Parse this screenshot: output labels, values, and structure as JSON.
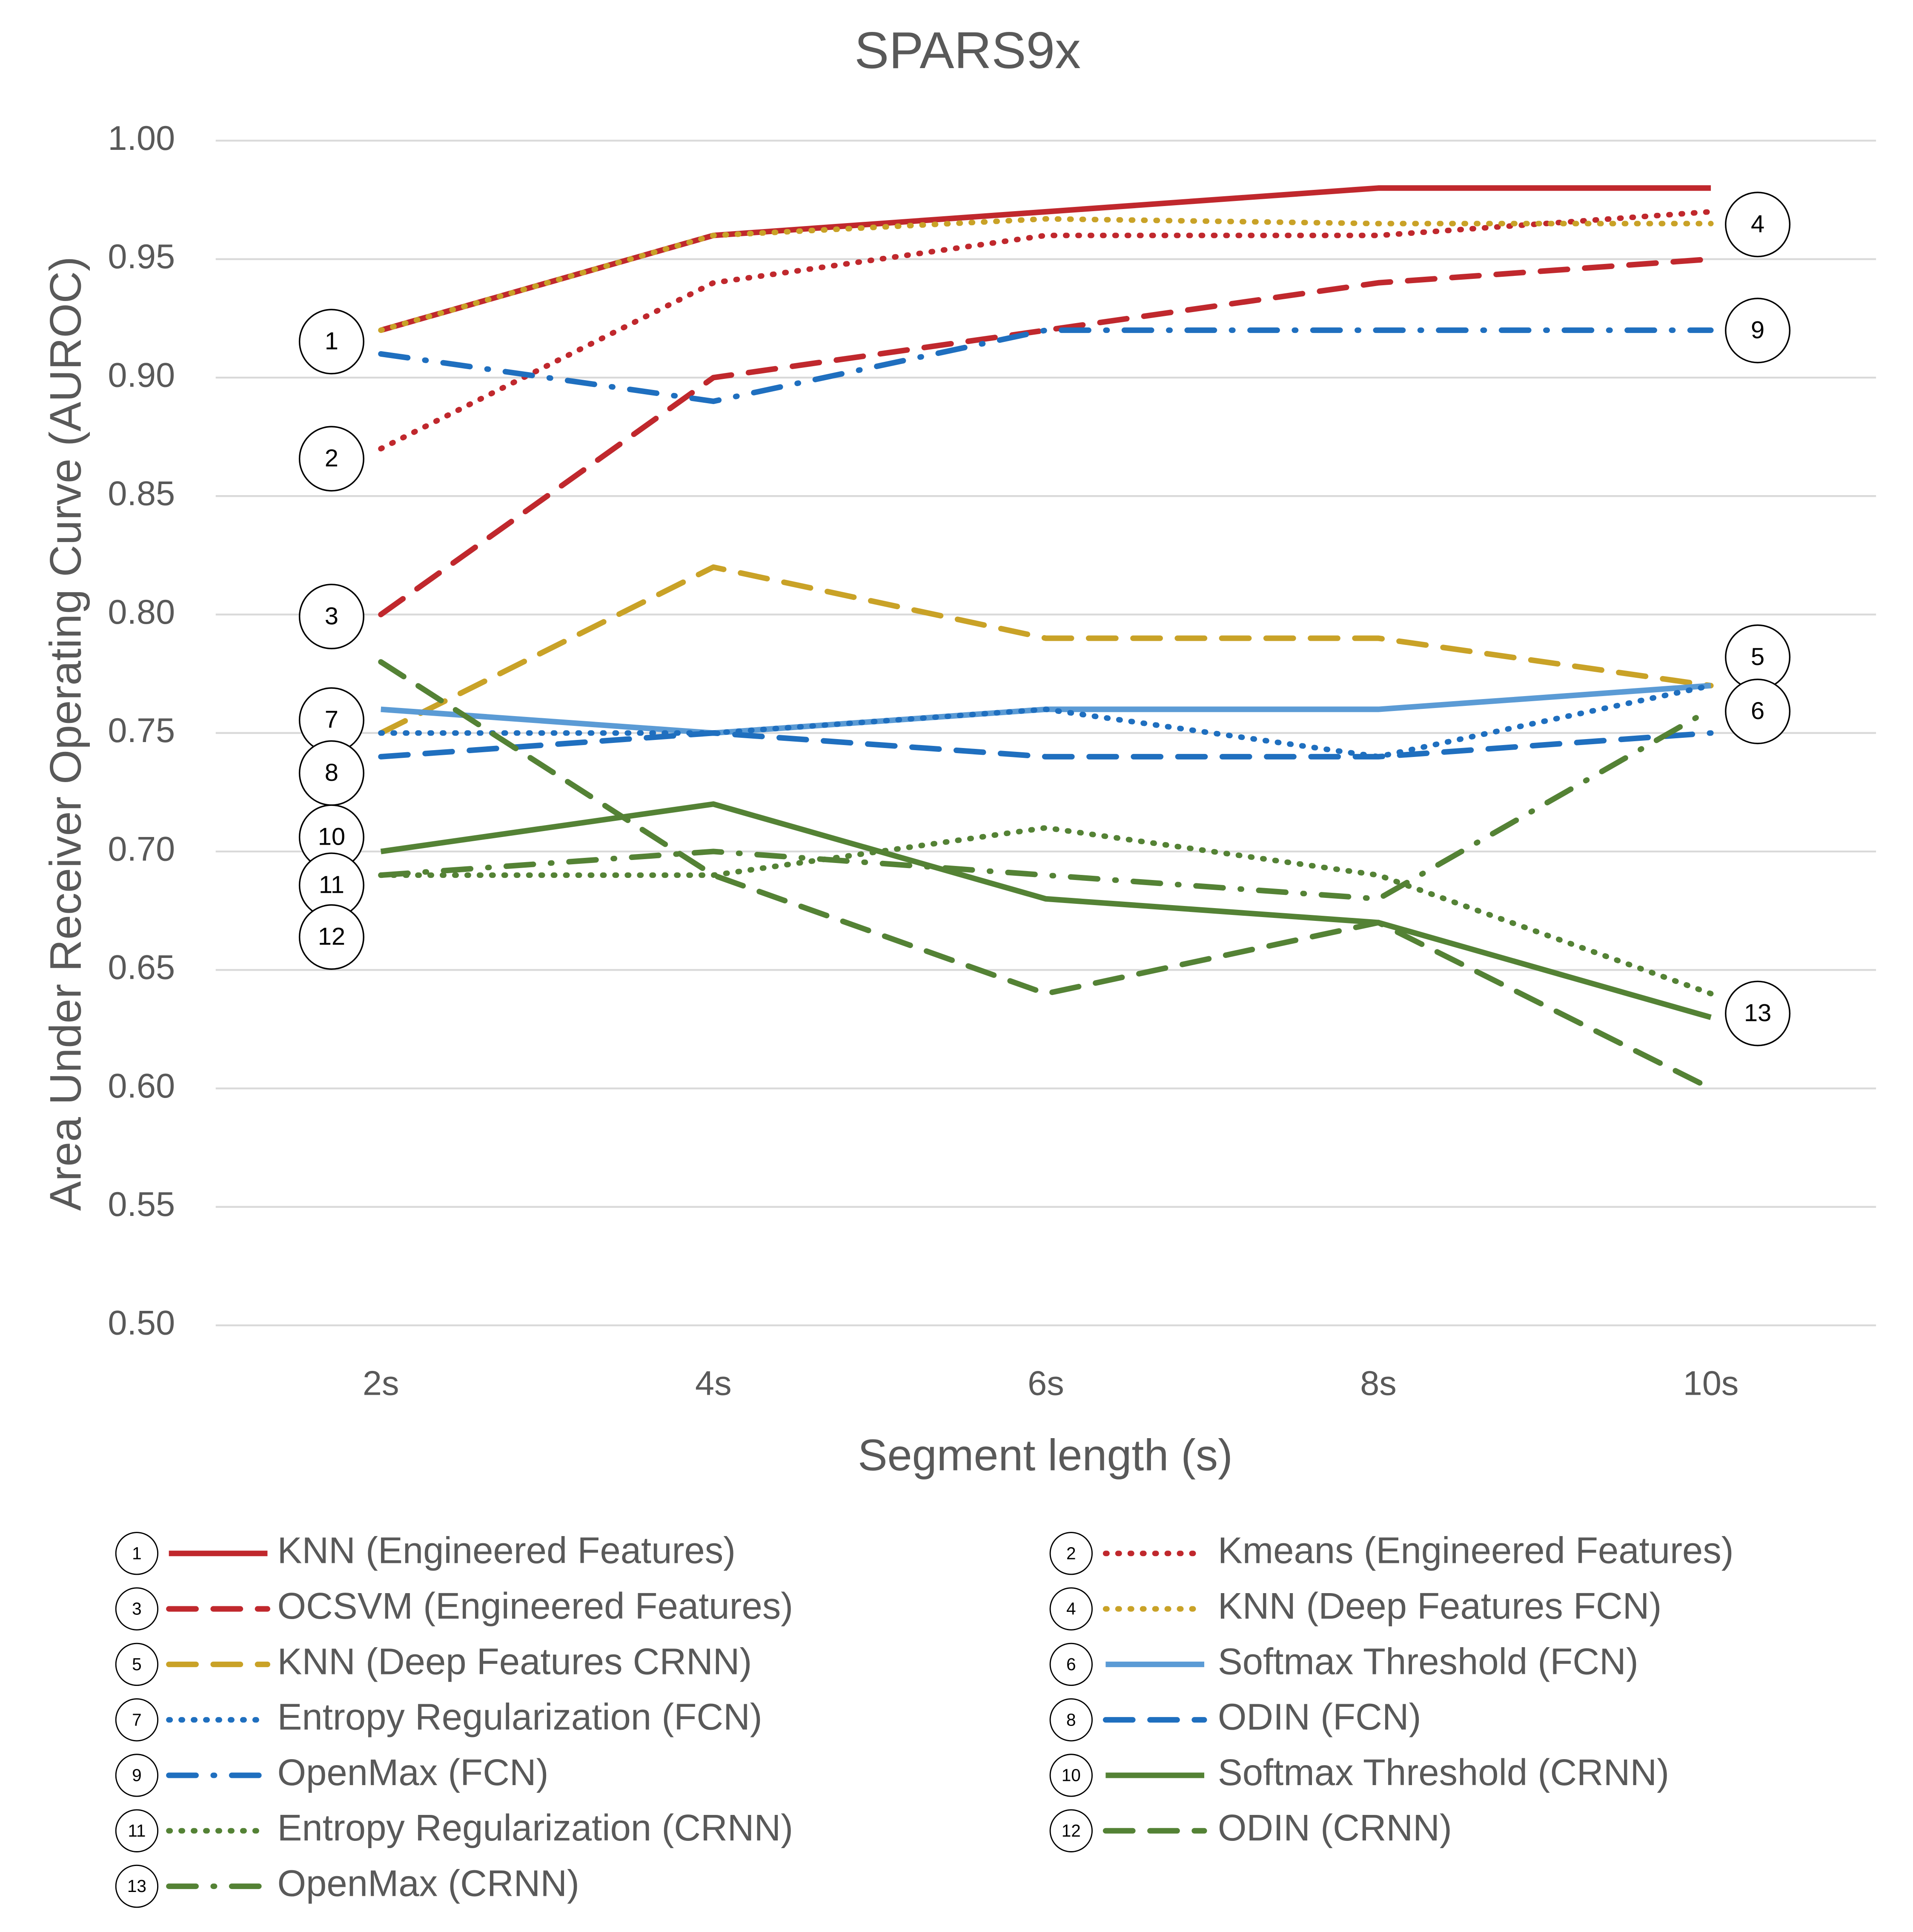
{
  "chart_data": {
    "type": "line",
    "title": "SPARS9x",
    "x_label": "Segment length (s)",
    "y_label": "Area Under Receiver Operating Curve (AUROC)",
    "categories": [
      "2s",
      "4s",
      "6s",
      "8s",
      "10s"
    ],
    "ylim": [
      0.5,
      1.0
    ],
    "yticks": [
      {
        "value": 0.5,
        "label": "0.50"
      },
      0.55,
      {
        "value": 0.6,
        "label": "0.60"
      },
      0.65,
      {
        "value": 0.7,
        "label": "0.70"
      },
      0.75,
      {
        "value": 0.8,
        "label": "0.80"
      },
      0.85,
      {
        "value": 0.9,
        "label": "0.90"
      },
      0.95,
      {
        "value": 1.0,
        "label": "1.00"
      }
    ],
    "grid": true,
    "series": [
      {
        "id": "1",
        "name": "KNN (Engineered Features)",
        "color": "#c0282d",
        "dash": "solid",
        "values": [
          0.92,
          0.96,
          0.97,
          0.98,
          0.98
        ]
      },
      {
        "id": "2",
        "name": "Kmeans (Engineered Features)",
        "color": "#c0282d",
        "dash": "dot",
        "values": [
          0.87,
          0.94,
          0.96,
          0.96,
          0.97
        ]
      },
      {
        "id": "3",
        "name": "OCSVM (Engineered Features)",
        "color": "#c0282d",
        "dash": "dash",
        "values": [
          0.8,
          0.9,
          0.92,
          0.94,
          0.95
        ]
      },
      {
        "id": "4",
        "name": "KNN (Deep Features FCN)",
        "color": "#c9a227",
        "dash": "dot",
        "values": [
          0.92,
          0.96,
          0.967,
          0.965,
          0.965
        ]
      },
      {
        "id": "5",
        "name": "KNN (Deep Features CRNN)",
        "color": "#c9a227",
        "dash": "dash",
        "values": [
          0.75,
          0.82,
          0.79,
          0.79,
          0.77
        ]
      },
      {
        "id": "6",
        "name": "Softmax Threshold (FCN)",
        "color": "#5b9bd5",
        "dash": "solid",
        "values": [
          0.76,
          0.75,
          0.76,
          0.76,
          0.77
        ]
      },
      {
        "id": "7",
        "name": "Entropy Regularization (FCN)",
        "color": "#1f6fbf",
        "dash": "dot",
        "values": [
          0.75,
          0.75,
          0.76,
          0.74,
          0.77
        ]
      },
      {
        "id": "8",
        "name": "ODIN (FCN)",
        "color": "#1f6fbf",
        "dash": "dash",
        "values": [
          0.74,
          0.75,
          0.74,
          0.74,
          0.75
        ]
      },
      {
        "id": "9",
        "name": "OpenMax (FCN)",
        "color": "#1f6fbf",
        "dash": "dashdot",
        "values": [
          0.91,
          0.89,
          0.92,
          0.92,
          0.92
        ]
      },
      {
        "id": "10",
        "name": "Softmax Threshold (CRNN)",
        "color": "#548235",
        "dash": "solid",
        "values": [
          0.7,
          0.72,
          0.68,
          0.67,
          0.63
        ]
      },
      {
        "id": "11",
        "name": "Entropy Regularization (CRNN)",
        "color": "#548235",
        "dash": "dot",
        "values": [
          0.69,
          0.69,
          0.71,
          0.69,
          0.64
        ]
      },
      {
        "id": "12",
        "name": "ODIN (CRNN)",
        "color": "#548235",
        "dash": "dash",
        "values": [
          0.78,
          0.69,
          0.64,
          0.67,
          0.6
        ]
      },
      {
        "id": "13",
        "name": "OpenMax (CRNN)",
        "color": "#548235",
        "dash": "dashdot",
        "values": [
          0.69,
          0.7,
          0.69,
          0.68,
          0.76
        ]
      }
    ]
  }
}
